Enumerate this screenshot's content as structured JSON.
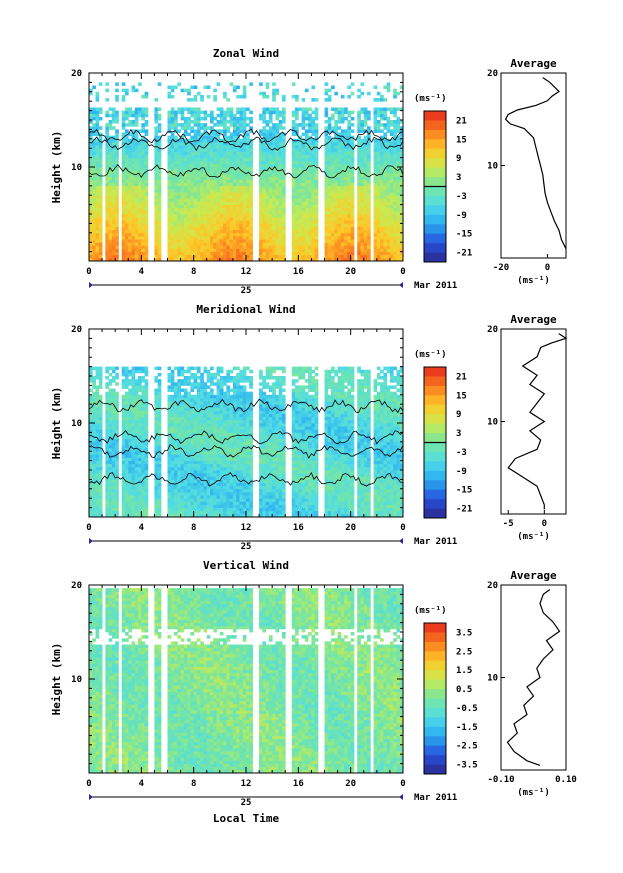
{
  "xlabel": "Local Time",
  "date_text": "Mar 2011",
  "day_text": "25",
  "chart_data": [
    {
      "type": "heatmap",
      "title": "Zonal Wind",
      "ylabel": "Height (km)",
      "unit": "(ms⁻¹)",
      "x": {
        "range": [
          0,
          24
        ],
        "ticks": [
          "0",
          "4",
          "8",
          "12",
          "16",
          "20",
          "0"
        ]
      },
      "y": {
        "range": [
          0,
          20
        ],
        "ticks": [
          "20",
          "10"
        ],
        "tick_values": [
          20,
          10
        ]
      },
      "colorbar": {
        "labels": [
          "21",
          "15",
          "9",
          "3",
          "-3",
          "-9",
          "-15",
          "-21"
        ],
        "min": -24,
        "max": 24
      },
      "contour_level": 0,
      "average": {
        "title": "Average",
        "xlabel": "(ms⁻¹)",
        "ticks": [
          "-20",
          "0"
        ],
        "tick_values": [
          -20,
          0
        ],
        "xlim": [
          -20,
          8
        ],
        "profile_h": [
          1,
          2,
          3,
          4,
          5,
          6,
          7,
          8,
          9,
          10,
          11,
          12,
          13,
          14,
          14.5,
          15,
          15.5,
          16,
          16.5,
          17,
          17.5,
          18,
          18.5,
          19,
          19.5
        ],
        "profile_v": [
          8,
          6,
          5,
          3,
          1.5,
          0,
          -1,
          -1.5,
          -2,
          -3,
          -4,
          -5,
          -6,
          -10,
          -16,
          -18,
          -17,
          -13,
          -5,
          0,
          2,
          5,
          3,
          1,
          -2
        ]
      }
    },
    {
      "type": "heatmap",
      "title": "Meridional Wind",
      "ylabel": "Height (km)",
      "unit": "(ms⁻¹)",
      "x": {
        "range": [
          0,
          24
        ],
        "ticks": [
          "0",
          "4",
          "8",
          "12",
          "16",
          "20",
          "0"
        ]
      },
      "y": {
        "range": [
          0,
          20
        ],
        "ticks": [
          "20",
          "10"
        ],
        "tick_values": [
          20,
          10
        ]
      },
      "colorbar": {
        "labels": [
          "21",
          "15",
          "9",
          "3",
          "-3",
          "-9",
          "-15",
          "-21"
        ],
        "min": -24,
        "max": 24
      },
      "contour_level": 0,
      "average": {
        "title": "Average",
        "xlabel": "(ms⁻¹)",
        "ticks": [
          "-5",
          "0"
        ],
        "tick_values": [
          -5,
          0
        ],
        "xlim": [
          -6,
          3
        ],
        "profile_h": [
          0.5,
          1,
          2,
          3,
          4,
          5,
          6,
          7,
          8,
          9,
          10,
          11,
          12,
          13,
          14,
          15,
          16,
          17,
          18,
          18.5,
          19,
          19.5
        ],
        "profile_v": [
          0,
          0,
          -0.5,
          -1,
          -3,
          -5,
          -4,
          -1,
          -0.5,
          -2,
          0,
          -2,
          -1,
          0,
          -2,
          -1,
          -3,
          -1,
          -0.5,
          1,
          3,
          2
        ]
      }
    },
    {
      "type": "heatmap",
      "title": "Vertical Wind",
      "ylabel": "Height (km)",
      "unit": "(ms⁻¹)",
      "x": {
        "range": [
          0,
          24
        ],
        "ticks": [
          "0",
          "4",
          "8",
          "12",
          "16",
          "20",
          "0"
        ]
      },
      "y": {
        "range": [
          0,
          20
        ],
        "ticks": [
          "20",
          "10"
        ],
        "tick_values": [
          20,
          10
        ]
      },
      "colorbar": {
        "labels": [
          "3.5",
          "2.5",
          "1.5",
          "0.5",
          "-0.5",
          "-1.5",
          "-2.5",
          "-3.5"
        ],
        "min": -4,
        "max": 4
      },
      "average": {
        "title": "Average",
        "xlabel": "(ms⁻¹)",
        "ticks": [
          "-0.10",
          "0.10"
        ],
        "tick_values": [
          -0.1,
          0.1
        ],
        "xlim": [
          -0.1,
          0.1
        ],
        "profile_h": [
          0.5,
          1,
          2,
          3,
          4,
          5,
          6,
          7,
          8,
          9,
          10,
          11,
          12,
          13,
          14,
          15,
          16,
          17,
          18,
          19,
          19.5
        ],
        "profile_v": [
          0.02,
          -0.02,
          -0.06,
          -0.08,
          -0.05,
          -0.06,
          -0.02,
          -0.03,
          0.0,
          -0.02,
          0.02,
          0.01,
          0.03,
          0.06,
          0.04,
          0.08,
          0.06,
          0.03,
          0.02,
          0.03,
          0.05
        ]
      }
    }
  ]
}
